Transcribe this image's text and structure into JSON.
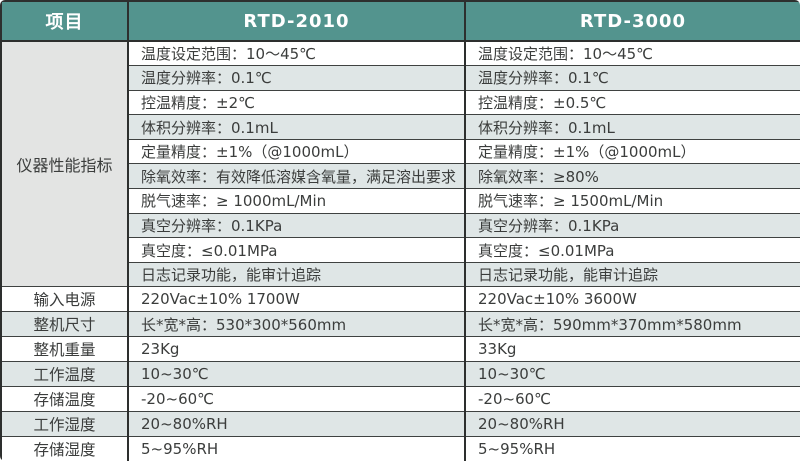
{
  "colors": {
    "header_bg": "#53948e",
    "header_text": "#ffffff",
    "stripe_row": "#dfe6e6",
    "merged_cell_bg": "#e3e4e3",
    "border": "#2d2f2e",
    "body_text": "#3b3d3c"
  },
  "header": {
    "item_label": "项目",
    "model_a": "RTD-2010",
    "model_b": "RTD-3000"
  },
  "performance": {
    "row_label": "仪器性能指标",
    "rows": [
      {
        "a": "温度设定范围：10～45℃",
        "b": "温度设定范围：10～45℃"
      },
      {
        "a": "温度分辨率：0.1℃",
        "b": "温度分辨率：0.1℃"
      },
      {
        "a": "控温精度：±2℃",
        "b": "控温精度：±0.5℃"
      },
      {
        "a": "体积分辨率：0.1mL",
        "b": "体积分辨率：0.1mL"
      },
      {
        "a": "定量精度：±1%（@1000mL）",
        "b": "定量精度：±1%（@1000mL）"
      },
      {
        "a": "除氧效率：有效降低溶媒含氧量，满足溶出要求",
        "b": "除氧效率：≥80%"
      },
      {
        "a": "脱气速率：≥ 1000mL/Min",
        "b": "脱气速率：≥ 1500mL/Min"
      },
      {
        "a": "真空分辨率：0.1KPa",
        "b": "真空分辨率：0.1KPa"
      },
      {
        "a": "真空度：≤0.01MPa",
        "b": "真空度：≤0.01MPa"
      },
      {
        "a": "日志记录功能，能审计追踪",
        "b": "日志记录功能，能审计追踪"
      }
    ]
  },
  "general_rows": [
    {
      "label": "输入电源",
      "a": "220Vac±10% 1700W",
      "b": "220Vac±10% 3600W"
    },
    {
      "label": "整机尺寸",
      "a": "长*宽*高：530*300*560mm",
      "b": "长*宽*高：590mm*370mm*580mm"
    },
    {
      "label": "整机重量",
      "a": "23Kg",
      "b": "33Kg"
    },
    {
      "label": "工作温度",
      "a": "10~30℃",
      "b": "10~30℃"
    },
    {
      "label": "存储温度",
      "a": "-20~60℃",
      "b": "-20~60℃"
    },
    {
      "label": "工作湿度",
      "a": "20~80%RH",
      "b": "20~80%RH"
    },
    {
      "label": "存储湿度",
      "a": "5~95%RH",
      "b": "5~95%RH"
    }
  ]
}
